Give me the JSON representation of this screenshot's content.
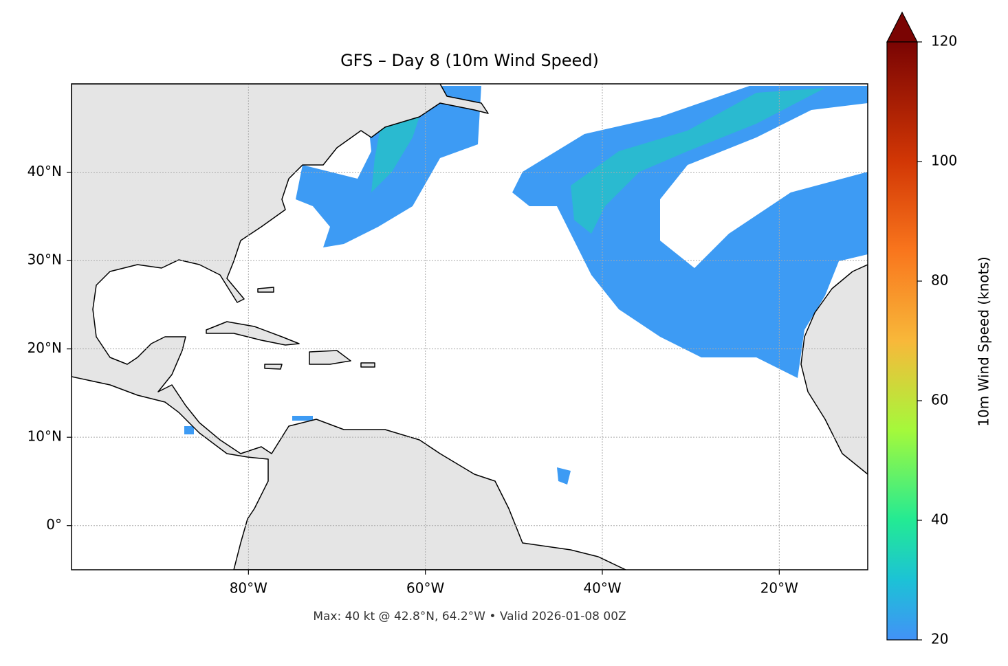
{
  "chart_data": {
    "type": "map",
    "title": "GFS – Day 8 (10m Wind Speed)",
    "note": "Max: 40 kt @ 42.8°N, 64.2°W • Valid 2026-01-08 00Z",
    "xlim": [
      -100,
      -10
    ],
    "ylim": [
      -5,
      50
    ],
    "xticks": [
      {
        "value": -80,
        "label": "80°W"
      },
      {
        "value": -60,
        "label": "60°W"
      },
      {
        "value": -40,
        "label": "40°W"
      },
      {
        "value": -20,
        "label": "20°W"
      }
    ],
    "yticks": [
      {
        "value": 0,
        "label": "0°"
      },
      {
        "value": 10,
        "label": "10°N"
      },
      {
        "value": 20,
        "label": "20°N"
      },
      {
        "value": 30,
        "label": "30°N"
      },
      {
        "value": 40,
        "label": "40°N"
      }
    ],
    "grid": true,
    "colorbar": {
      "label": "10m Wind Speed (knots)",
      "lim": [
        20,
        120
      ],
      "ticks": [
        20,
        40,
        60,
        80,
        100,
        120
      ]
    }
  }
}
